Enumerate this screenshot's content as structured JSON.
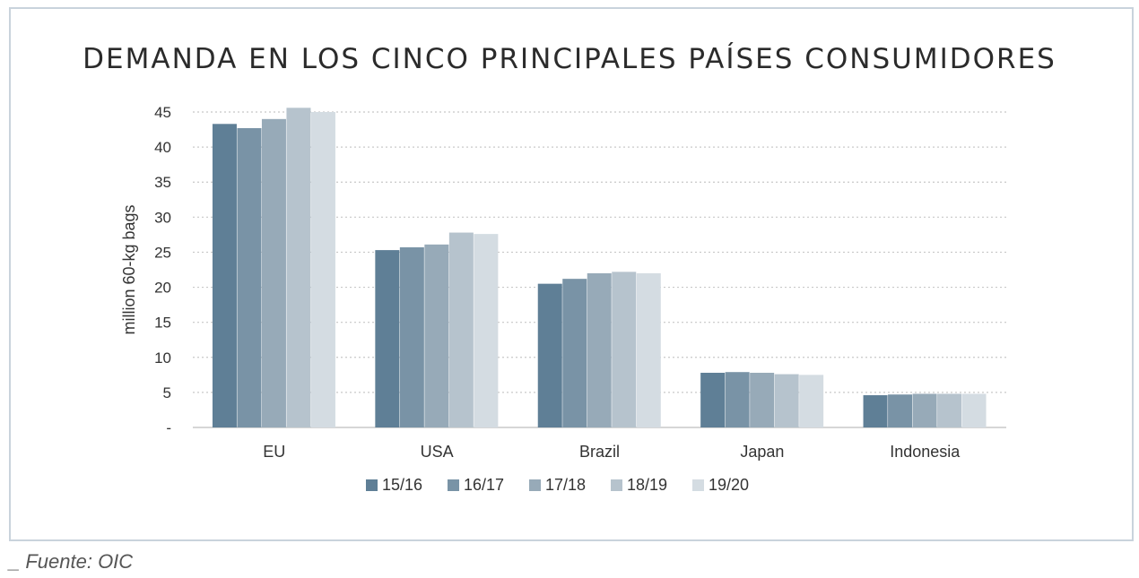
{
  "source": "_ Fuente: OIC",
  "chart_data": {
    "type": "bar",
    "title": "DEMANDA EN LOS CINCO PRINCIPALES PAÍSES CONSUMIDORES",
    "ylabel": "million 60-kg bags",
    "xlabel": "",
    "categories": [
      "EU",
      "USA",
      "Brazil",
      "Japan",
      "Indonesia"
    ],
    "ylim": [
      0,
      45
    ],
    "yticks": [
      0,
      5,
      10,
      15,
      20,
      25,
      30,
      35,
      40,
      45
    ],
    "ytick_labels": [
      "-",
      "5",
      "10",
      "15",
      "20",
      "25",
      "30",
      "35",
      "40",
      "45"
    ],
    "grid": true,
    "legend_position": "bottom",
    "series": [
      {
        "name": "15/16",
        "color": "#5f7f96",
        "values": [
          43.3,
          25.3,
          20.5,
          7.8,
          4.6
        ]
      },
      {
        "name": "16/17",
        "color": "#7993a6",
        "values": [
          42.7,
          25.7,
          21.2,
          7.9,
          4.7
        ]
      },
      {
        "name": "17/18",
        "color": "#97aab8",
        "values": [
          44.0,
          26.1,
          22.0,
          7.8,
          4.8
        ]
      },
      {
        "name": "18/19",
        "color": "#b6c3cd",
        "values": [
          45.6,
          27.8,
          22.2,
          7.6,
          4.8
        ]
      },
      {
        "name": "19/20",
        "color": "#d4dce2",
        "values": [
          45.0,
          27.6,
          22.0,
          7.5,
          4.8
        ]
      }
    ]
  }
}
